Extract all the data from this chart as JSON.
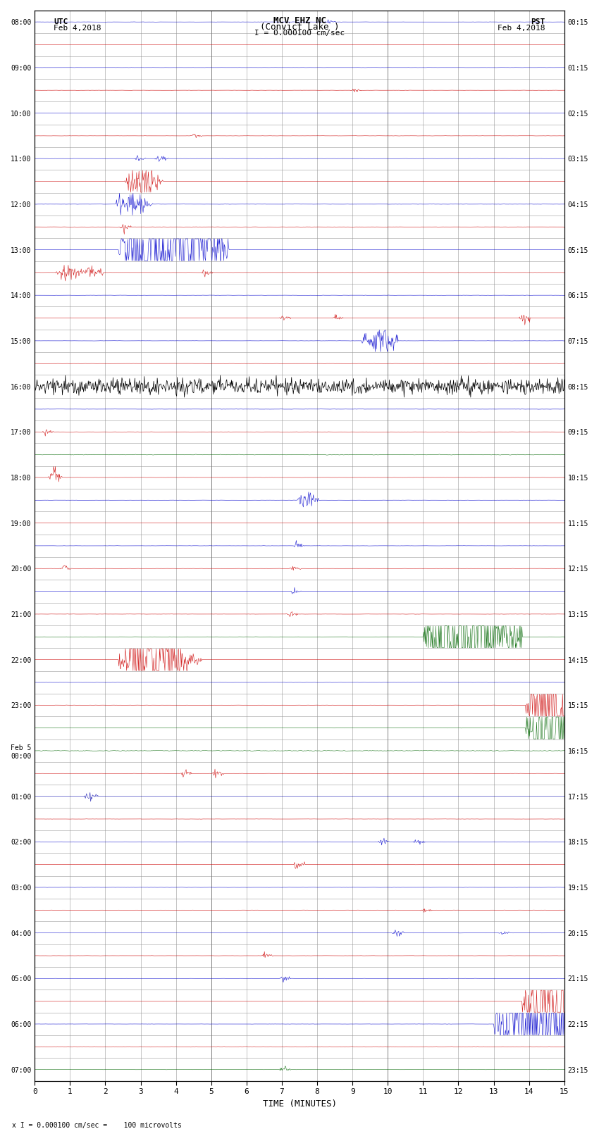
{
  "title_line1": "MCV EHZ NC",
  "title_line2": "(Convict Lake )",
  "scale_text": "I = 0.000100 cm/sec",
  "footer_text": "x I = 0.000100 cm/sec =    100 microvolts",
  "left_label_line1": "UTC",
  "left_label_line2": "Feb 4,2018",
  "right_label_line1": "PST",
  "right_label_line2": "Feb 4,2018",
  "xlabel": "TIME (MINUTES)",
  "bg_color": "#ffffff",
  "grid_color": "#999999",
  "num_rows": 47,
  "minutes_per_row": 15,
  "left_times": [
    "08:00",
    "",
    "09:00",
    "",
    "10:00",
    "",
    "11:00",
    "",
    "12:00",
    "",
    "13:00",
    "",
    "14:00",
    "",
    "15:00",
    "",
    "16:00",
    "",
    "17:00",
    "",
    "18:00",
    "",
    "19:00",
    "",
    "20:00",
    "",
    "21:00",
    "",
    "22:00",
    "",
    "23:00",
    "",
    "Feb 5\n00:00",
    "",
    "01:00",
    "",
    "02:00",
    "",
    "03:00",
    "",
    "04:00",
    "",
    "05:00",
    "",
    "06:00",
    "",
    "07:00",
    ""
  ],
  "right_times": [
    "00:15",
    "",
    "01:15",
    "",
    "02:15",
    "",
    "03:15",
    "",
    "04:15",
    "",
    "05:15",
    "",
    "06:15",
    "",
    "07:15",
    "",
    "08:15",
    "",
    "09:15",
    "",
    "10:15",
    "",
    "11:15",
    "",
    "12:15",
    "",
    "13:15",
    "",
    "14:15",
    "",
    "15:15",
    "",
    "16:15",
    "",
    "17:15",
    "",
    "18:15",
    "",
    "19:15",
    "",
    "20:15",
    "",
    "21:15",
    "",
    "22:15",
    "",
    "23:15",
    ""
  ],
  "row_colors": [
    "#0000cc",
    "#cc0000",
    "#0000cc",
    "#cc0000",
    "#0000cc",
    "#cc0000",
    "#0000cc",
    "#cc0000",
    "#0000cc",
    "#cc0000",
    "#0000cc",
    "#cc0000",
    "#0000cc",
    "#cc0000",
    "#0000cc",
    "#cc0000",
    "#000000",
    "#0000cc",
    "#cc0000",
    "#006600",
    "#cc0000",
    "#0000cc",
    "#cc0000",
    "#0000cc",
    "#cc0000",
    "#0000cc",
    "#cc0000",
    "#006600",
    "#cc0000",
    "#0000cc",
    "#cc0000",
    "#006600",
    "#006600",
    "#cc0000",
    "#0000aa",
    "#cc0000",
    "#0000cc",
    "#cc0000",
    "#0000cc",
    "#cc0000",
    "#0000cc",
    "#cc0000",
    "#0000cc",
    "#cc0000",
    "#0000cc",
    "#cc0000",
    "#006600"
  ]
}
